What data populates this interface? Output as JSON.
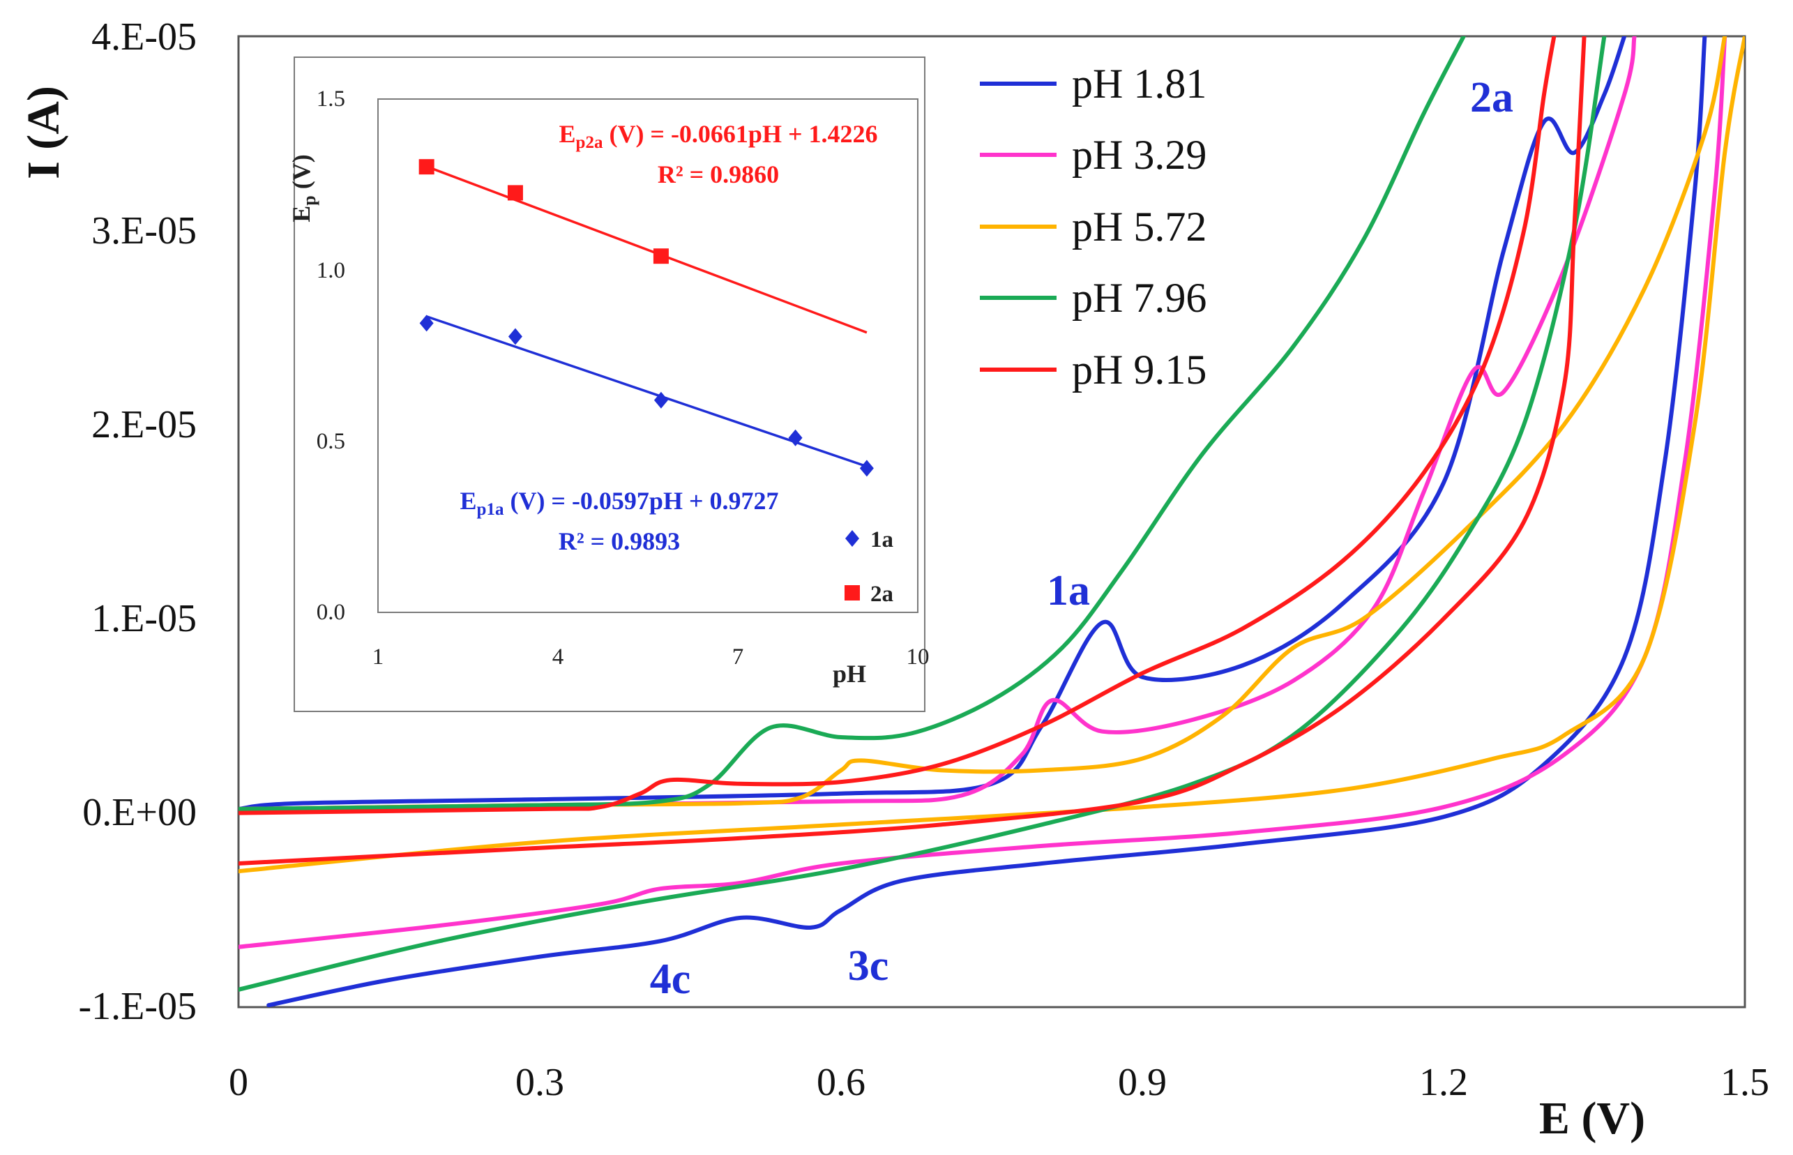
{
  "chart_data": [
    {
      "type": "line",
      "title": "",
      "xlabel": "E (V)",
      "ylabel": "I (A)",
      "xlim": [
        0,
        1.5
      ],
      "ylim": [
        -1e-05,
        4e-05
      ],
      "x_ticks": [
        0,
        0.3,
        0.6,
        0.9,
        1.2,
        1.5
      ],
      "x_tick_labels": [
        "0",
        "0.3",
        "0.6",
        "0.9",
        "1.2",
        "1.5"
      ],
      "y_ticks": [
        -1e-05,
        0,
        1e-05,
        2e-05,
        3e-05,
        4e-05
      ],
      "y_tick_labels": [
        "-1.E-05",
        "0.E+00",
        "1.E-05",
        "2.E-05",
        "3.E-05",
        "4.E-05"
      ],
      "legend_position": "top-right",
      "series": [
        {
          "name": "pH 1.81",
          "color": "#1f2fd6",
          "forward": [
            [
              0.0,
              2e-07
            ],
            [
              0.06,
              5e-07
            ],
            [
              0.3,
              7e-07
            ],
            [
              0.6,
              1e-06
            ],
            [
              0.75,
              1.5e-06
            ],
            [
              0.8,
              4.5e-06
            ],
            [
              0.86,
              9.8e-06
            ],
            [
              0.9,
              7e-06
            ],
            [
              1.0,
              7.6e-06
            ],
            [
              1.1,
              1.08e-05
            ],
            [
              1.2,
              1.7e-05
            ],
            [
              1.26,
              2.9e-05
            ],
            [
              1.3,
              3.56e-05
            ],
            [
              1.33,
              3.4e-05
            ],
            [
              1.36,
              3.7e-05
            ],
            [
              1.38,
              4e-05
            ]
          ],
          "reverse": [
            [
              1.46,
              4e-05
            ],
            [
              1.45,
              3.2e-05
            ],
            [
              1.42,
              1.8e-05
            ],
            [
              1.38,
              8e-06
            ],
            [
              1.3,
              2.5e-06
            ],
            [
              1.2,
              -2e-07
            ],
            [
              1.0,
              -1.6e-06
            ],
            [
              0.8,
              -2.6e-06
            ],
            [
              0.66,
              -3.5e-06
            ],
            [
              0.6,
              -5e-06
            ],
            [
              0.57,
              -5.9e-06
            ],
            [
              0.5,
              -5.4e-06
            ],
            [
              0.42,
              -6.6e-06
            ],
            [
              0.3,
              -7.4e-06
            ],
            [
              0.15,
              -8.6e-06
            ],
            [
              0.03,
              -9.9e-06
            ]
          ]
        },
        {
          "name": "pH 3.29",
          "color": "#ff33cc",
          "forward": [
            [
              0.0,
              2e-07
            ],
            [
              0.3,
              4e-07
            ],
            [
              0.6,
              6e-07
            ],
            [
              0.72,
              9e-07
            ],
            [
              0.78,
              3e-06
            ],
            [
              0.81,
              5.8e-06
            ],
            [
              0.86,
              4.2e-06
            ],
            [
              0.95,
              4.8e-06
            ],
            [
              1.05,
              6.8e-06
            ],
            [
              1.13,
              1.05e-05
            ],
            [
              1.18,
              1.65e-05
            ],
            [
              1.23,
              2.28e-05
            ],
            [
              1.26,
              2.17e-05
            ],
            [
              1.32,
              2.8e-05
            ],
            [
              1.38,
              3.7e-05
            ],
            [
              1.39,
              4e-05
            ]
          ],
          "reverse": [
            [
              1.48,
              4e-05
            ],
            [
              1.47,
              3.2e-05
            ],
            [
              1.44,
              1.8e-05
            ],
            [
              1.4,
              8e-06
            ],
            [
              1.32,
              3e-06
            ],
            [
              1.2,
              3e-07
            ],
            [
              1.0,
              -1e-06
            ],
            [
              0.8,
              -1.7e-06
            ],
            [
              0.6,
              -2.6e-06
            ],
            [
              0.5,
              -3.6e-06
            ],
            [
              0.42,
              -3.9e-06
            ],
            [
              0.36,
              -4.7e-06
            ],
            [
              0.2,
              -5.8e-06
            ],
            [
              0.0,
              -6.9e-06
            ]
          ]
        },
        {
          "name": "pH 5.72",
          "color": "#ffb300",
          "forward": [
            [
              0.0,
              2e-07
            ],
            [
              0.3,
              4e-07
            ],
            [
              0.5,
              5e-07
            ],
            [
              0.56,
              8e-07
            ],
            [
              0.6,
              2.2e-06
            ],
            [
              0.62,
              2.7e-06
            ],
            [
              0.7,
              2.2e-06
            ],
            [
              0.8,
              2.2e-06
            ],
            [
              0.9,
              2.8e-06
            ],
            [
              0.98,
              5e-06
            ],
            [
              1.05,
              8.5e-06
            ],
            [
              1.12,
              1e-05
            ],
            [
              1.22,
              1.45e-05
            ],
            [
              1.32,
              2e-05
            ],
            [
              1.4,
              2.7e-05
            ],
            [
              1.46,
              3.5e-05
            ],
            [
              1.48,
              4e-05
            ]
          ],
          "reverse": [
            [
              1.5,
              4e-05
            ],
            [
              1.48,
              3.4e-05
            ],
            [
              1.45,
              2e-05
            ],
            [
              1.4,
              8e-06
            ],
            [
              1.32,
              4e-06
            ],
            [
              1.25,
              2.8e-06
            ],
            [
              1.1,
              1.2e-06
            ],
            [
              0.9,
              3e-07
            ],
            [
              0.6,
              -6e-07
            ],
            [
              0.3,
              -1.5e-06
            ],
            [
              0.0,
              -3e-06
            ]
          ]
        },
        {
          "name": "pH 7.96",
          "color": "#1aaa55",
          "forward": [
            [
              0.0,
              2e-07
            ],
            [
              0.3,
              4e-07
            ],
            [
              0.42,
              6e-07
            ],
            [
              0.47,
              1.5e-06
            ],
            [
              0.53,
              4.4e-06
            ],
            [
              0.6,
              3.9e-06
            ],
            [
              0.67,
              4.1e-06
            ],
            [
              0.75,
              5.8e-06
            ],
            [
              0.82,
              8.5e-06
            ],
            [
              0.88,
              1.25e-05
            ],
            [
              0.96,
              1.85e-05
            ],
            [
              1.05,
              2.4e-05
            ],
            [
              1.12,
              2.95e-05
            ],
            [
              1.18,
              3.6e-05
            ],
            [
              1.22,
              4e-05
            ]
          ],
          "reverse": [
            [
              1.36,
              4e-05
            ],
            [
              1.33,
              3e-05
            ],
            [
              1.28,
              2e-05
            ],
            [
              1.22,
              1.4e-05
            ],
            [
              1.15,
              9e-06
            ],
            [
              1.05,
              4e-06
            ],
            [
              0.95,
              1.5e-06
            ],
            [
              0.8,
              -6e-07
            ],
            [
              0.6,
              -2.9e-06
            ],
            [
              0.4,
              -4.6e-06
            ],
            [
              0.2,
              -6.6e-06
            ],
            [
              0.0,
              -9.1e-06
            ]
          ]
        },
        {
          "name": "pH 9.15",
          "color": "#ff1a1a",
          "forward": [
            [
              0.0,
              0.0
            ],
            [
              0.3,
              2e-07
            ],
            [
              0.36,
              3e-07
            ],
            [
              0.4,
              1e-06
            ],
            [
              0.43,
              1.7e-06
            ],
            [
              0.5,
              1.5e-06
            ],
            [
              0.6,
              1.6e-06
            ],
            [
              0.7,
              2.5e-06
            ],
            [
              0.8,
              4.5e-06
            ],
            [
              0.9,
              7.2e-06
            ],
            [
              1.0,
              9.5e-06
            ],
            [
              1.1,
              1.3e-05
            ],
            [
              1.18,
              1.75e-05
            ],
            [
              1.24,
              2.3e-05
            ],
            [
              1.28,
              3e-05
            ],
            [
              1.3,
              3.7e-05
            ],
            [
              1.31,
              4e-05
            ]
          ],
          "reverse": [
            [
              1.34,
              4e-05
            ],
            [
              1.33,
              3e-05
            ],
            [
              1.32,
              2.2e-05
            ],
            [
              1.28,
              1.5e-05
            ],
            [
              1.2,
              1e-05
            ],
            [
              1.1,
              5.5e-06
            ],
            [
              1.0,
              2.5e-06
            ],
            [
              0.9,
              6e-07
            ],
            [
              0.7,
              -6e-07
            ],
            [
              0.5,
              -1.3e-06
            ],
            [
              0.3,
              -1.8e-06
            ],
            [
              0.0,
              -2.6e-06
            ]
          ]
        }
      ],
      "annotations": [
        {
          "text": "1a",
          "x": 0.83,
          "y": 1.1e-05
        },
        {
          "text": "2a",
          "x": 1.27,
          "y": 3.68e-05
        },
        {
          "text": "3c",
          "x": 0.6,
          "y": -8e-06
        },
        {
          "text": "4c",
          "x": 0.4,
          "y": -8.7e-06
        }
      ]
    },
    {
      "type": "scatter",
      "title": "",
      "xlabel": "pH",
      "ylabel": "E",
      "ylabel_sub": "p",
      "ylabel_unit": " (V)",
      "xlim": [
        1,
        10
      ],
      "ylim": [
        0.0,
        1.5
      ],
      "x_ticks": [
        1,
        4,
        7,
        10
      ],
      "x_tick_labels": [
        "1",
        "4",
        "7",
        "10"
      ],
      "y_ticks": [
        0.0,
        0.5,
        1.0,
        1.5
      ],
      "y_tick_labels": [
        "0.0",
        "0.5",
        "1.0",
        "1.5"
      ],
      "legend_position": "bottom-right",
      "series": [
        {
          "name": "1a",
          "color": "#1f2fd6",
          "marker": "diamond",
          "x": [
            1.81,
            3.29,
            5.72,
            7.96,
            9.15
          ],
          "y": [
            0.845,
            0.806,
            0.62,
            0.51,
            0.421
          ],
          "fit": {
            "slope": -0.0597,
            "intercept": 0.9727
          },
          "equation_prefix": "E",
          "equation_sub": "p1a",
          "equation_rest": " (V) = -0.0597pH + 0.9727",
          "r2": "R² = 0.9893"
        },
        {
          "name": "2a",
          "color": "#ff1a1a",
          "marker": "square",
          "x": [
            1.81,
            3.29,
            5.72
          ],
          "y": [
            1.302,
            1.226,
            1.041
          ],
          "fit": {
            "slope": -0.0661,
            "intercept": 1.4226
          },
          "equation_prefix": "E",
          "equation_sub": "p2a",
          "equation_rest": " (V) = -0.0661pH + 1.4226",
          "r2": "R² = 0.9860"
        }
      ]
    }
  ]
}
